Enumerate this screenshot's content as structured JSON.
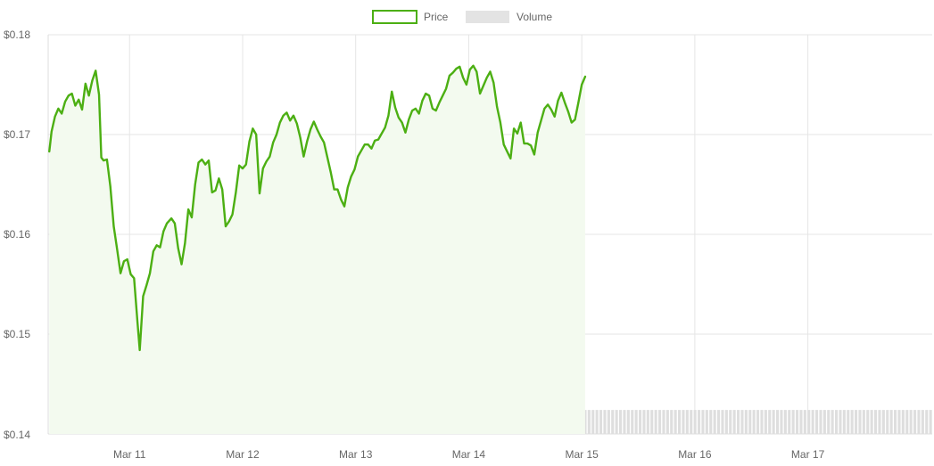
{
  "legend": {
    "position": "top-center",
    "items": [
      {
        "label": "Price",
        "color": "#4caf13",
        "style": "outline"
      },
      {
        "label": "Volume",
        "color": "#e3e3e3",
        "style": "filled"
      }
    ]
  },
  "colors": {
    "price_line": "#4caf13",
    "price_fill": "#f3faef",
    "volume_bar": "#dedede",
    "grid": "#e5e5e5",
    "axis_text": "#666666"
  },
  "chart_data": {
    "type": "line",
    "title": "",
    "xlabel": "",
    "ylabel": "",
    "grid": true,
    "xlim": [
      10.28,
      18.1
    ],
    "ylim": [
      0.14,
      0.18
    ],
    "y_ticks": [
      {
        "value": 0.18,
        "label": "$0.18"
      },
      {
        "value": 0.17,
        "label": "$0.17"
      },
      {
        "value": 0.16,
        "label": "$0.16"
      },
      {
        "value": 0.15,
        "label": "$0.15"
      },
      {
        "value": 0.14,
        "label": "$0.14"
      }
    ],
    "x_ticks": [
      {
        "value": 11,
        "label": "Mar 11"
      },
      {
        "value": 12,
        "label": "Mar 12"
      },
      {
        "value": 13,
        "label": "Mar 13"
      },
      {
        "value": 14,
        "label": "Mar 14"
      },
      {
        "value": 15,
        "label": "Mar 15"
      },
      {
        "value": 16,
        "label": "Mar 16"
      },
      {
        "value": 17,
        "label": "Mar 17"
      }
    ],
    "series": [
      {
        "name": "Price",
        "kind": "line",
        "points": [
          [
            10.29,
            0.1683
          ],
          [
            10.31,
            0.1703
          ],
          [
            10.34,
            0.1718
          ],
          [
            10.37,
            0.1726
          ],
          [
            10.4,
            0.1721
          ],
          [
            10.43,
            0.1733
          ],
          [
            10.46,
            0.1739
          ],
          [
            10.49,
            0.1741
          ],
          [
            10.52,
            0.1729
          ],
          [
            10.55,
            0.1735
          ],
          [
            10.58,
            0.1725
          ],
          [
            10.61,
            0.1751
          ],
          [
            10.64,
            0.1739
          ],
          [
            10.67,
            0.1754
          ],
          [
            10.7,
            0.1764
          ],
          [
            10.73,
            0.174
          ],
          [
            10.75,
            0.1677
          ],
          [
            10.77,
            0.1674
          ],
          [
            10.8,
            0.1675
          ],
          [
            10.83,
            0.1648
          ],
          [
            10.86,
            0.1608
          ],
          [
            10.89,
            0.1585
          ],
          [
            10.92,
            0.1561
          ],
          [
            10.95,
            0.1573
          ],
          [
            10.98,
            0.1575
          ],
          [
            11.01,
            0.156
          ],
          [
            11.04,
            0.1556
          ],
          [
            11.07,
            0.1512
          ],
          [
            11.09,
            0.1484
          ],
          [
            11.12,
            0.1538
          ],
          [
            11.15,
            0.1549
          ],
          [
            11.18,
            0.1561
          ],
          [
            11.21,
            0.1583
          ],
          [
            11.24,
            0.1589
          ],
          [
            11.27,
            0.1587
          ],
          [
            11.3,
            0.1603
          ],
          [
            11.33,
            0.1611
          ],
          [
            11.37,
            0.1616
          ],
          [
            11.4,
            0.1611
          ],
          [
            11.43,
            0.1586
          ],
          [
            11.46,
            0.157
          ],
          [
            11.49,
            0.1591
          ],
          [
            11.52,
            0.1625
          ],
          [
            11.55,
            0.1617
          ],
          [
            11.58,
            0.165
          ],
          [
            11.61,
            0.1672
          ],
          [
            11.64,
            0.1675
          ],
          [
            11.67,
            0.167
          ],
          [
            11.7,
            0.1674
          ],
          [
            11.73,
            0.1642
          ],
          [
            11.76,
            0.1644
          ],
          [
            11.79,
            0.1656
          ],
          [
            11.82,
            0.1645
          ],
          [
            11.85,
            0.1608
          ],
          [
            11.88,
            0.1613
          ],
          [
            11.91,
            0.162
          ],
          [
            11.94,
            0.1642
          ],
          [
            11.97,
            0.1669
          ],
          [
            12.0,
            0.1666
          ],
          [
            12.03,
            0.167
          ],
          [
            12.06,
            0.1693
          ],
          [
            12.09,
            0.1706
          ],
          [
            12.12,
            0.17
          ],
          [
            12.15,
            0.1641
          ],
          [
            12.18,
            0.1666
          ],
          [
            12.21,
            0.1673
          ],
          [
            12.24,
            0.1678
          ],
          [
            12.27,
            0.1692
          ],
          [
            12.3,
            0.17
          ],
          [
            12.33,
            0.1712
          ],
          [
            12.36,
            0.1719
          ],
          [
            12.39,
            0.1722
          ],
          [
            12.42,
            0.1714
          ],
          [
            12.45,
            0.1719
          ],
          [
            12.48,
            0.1711
          ],
          [
            12.51,
            0.1697
          ],
          [
            12.54,
            0.1678
          ],
          [
            12.57,
            0.1693
          ],
          [
            12.6,
            0.1705
          ],
          [
            12.63,
            0.1713
          ],
          [
            12.66,
            0.1705
          ],
          [
            12.69,
            0.1698
          ],
          [
            12.72,
            0.1692
          ],
          [
            12.75,
            0.1677
          ],
          [
            12.78,
            0.1662
          ],
          [
            12.81,
            0.1645
          ],
          [
            12.84,
            0.1645
          ],
          [
            12.87,
            0.1635
          ],
          [
            12.9,
            0.1628
          ],
          [
            12.93,
            0.1647
          ],
          [
            12.96,
            0.1658
          ],
          [
            12.99,
            0.1665
          ],
          [
            13.02,
            0.1678
          ],
          [
            13.05,
            0.1684
          ],
          [
            13.08,
            0.169
          ],
          [
            13.11,
            0.169
          ],
          [
            13.14,
            0.1686
          ],
          [
            13.17,
            0.1694
          ],
          [
            13.2,
            0.1695
          ],
          [
            13.23,
            0.1701
          ],
          [
            13.26,
            0.1707
          ],
          [
            13.29,
            0.1719
          ],
          [
            13.32,
            0.1743
          ],
          [
            13.35,
            0.1727
          ],
          [
            13.38,
            0.1717
          ],
          [
            13.41,
            0.1712
          ],
          [
            13.44,
            0.1702
          ],
          [
            13.47,
            0.1715
          ],
          [
            13.5,
            0.1724
          ],
          [
            13.53,
            0.1726
          ],
          [
            13.56,
            0.1721
          ],
          [
            13.59,
            0.1734
          ],
          [
            13.62,
            0.1741
          ],
          [
            13.65,
            0.1739
          ],
          [
            13.68,
            0.1726
          ],
          [
            13.71,
            0.1724
          ],
          [
            13.74,
            0.1732
          ],
          [
            13.77,
            0.1739
          ],
          [
            13.8,
            0.1746
          ],
          [
            13.83,
            0.1759
          ],
          [
            13.86,
            0.1762
          ],
          [
            13.89,
            0.1766
          ],
          [
            13.92,
            0.1768
          ],
          [
            13.95,
            0.1757
          ],
          [
            13.98,
            0.175
          ],
          [
            14.01,
            0.1765
          ],
          [
            14.04,
            0.1769
          ],
          [
            14.07,
            0.1763
          ],
          [
            14.1,
            0.1741
          ],
          [
            14.13,
            0.1749
          ],
          [
            14.16,
            0.1757
          ],
          [
            14.19,
            0.1763
          ],
          [
            14.22,
            0.1752
          ],
          [
            14.25,
            0.1728
          ],
          [
            14.28,
            0.1712
          ],
          [
            14.31,
            0.169
          ],
          [
            14.34,
            0.1683
          ],
          [
            14.37,
            0.1676
          ],
          [
            14.4,
            0.1706
          ],
          [
            14.43,
            0.1701
          ],
          [
            14.46,
            0.1712
          ],
          [
            14.49,
            0.1691
          ],
          [
            14.52,
            0.1691
          ],
          [
            14.55,
            0.1689
          ],
          [
            14.58,
            0.168
          ],
          [
            14.61,
            0.1702
          ],
          [
            14.64,
            0.1714
          ],
          [
            14.67,
            0.1726
          ],
          [
            14.7,
            0.173
          ],
          [
            14.73,
            0.1725
          ],
          [
            14.76,
            0.1718
          ],
          [
            14.79,
            0.1734
          ],
          [
            14.82,
            0.1742
          ],
          [
            14.85,
            0.1732
          ],
          [
            14.88,
            0.1723
          ],
          [
            14.91,
            0.1712
          ],
          [
            14.94,
            0.1715
          ],
          [
            14.97,
            0.1732
          ],
          [
            15.0,
            0.175
          ],
          [
            15.03,
            0.1758
          ]
        ]
      },
      {
        "name": "Volume",
        "kind": "bar",
        "baseline": 0.14,
        "points": [
          [
            10.3,
            0.1439
          ],
          [
            10.4,
            0.144
          ],
          [
            10.5,
            0.1441
          ],
          [
            10.6,
            0.1445
          ],
          [
            10.7,
            0.1447
          ],
          [
            10.8,
            0.1445
          ],
          [
            10.9,
            0.1442
          ],
          [
            11.0,
            0.1443
          ],
          [
            11.1,
            0.1446
          ],
          [
            11.2,
            0.1452
          ],
          [
            11.3,
            0.1455
          ],
          [
            11.4,
            0.1455
          ],
          [
            11.5,
            0.1456
          ],
          [
            11.6,
            0.1457
          ],
          [
            11.7,
            0.1455
          ],
          [
            11.8,
            0.145
          ],
          [
            11.9,
            0.1445
          ],
          [
            12.0,
            0.1443
          ],
          [
            12.1,
            0.1444
          ],
          [
            12.2,
            0.1442
          ],
          [
            12.3,
            0.1438
          ],
          [
            12.4,
            0.1436
          ],
          [
            12.5,
            0.1435
          ],
          [
            12.6,
            0.1434
          ],
          [
            12.7,
            0.1434
          ],
          [
            12.8,
            0.1433
          ],
          [
            12.9,
            0.1432
          ],
          [
            13.0,
            0.1431
          ],
          [
            13.1,
            0.143
          ],
          [
            13.2,
            0.143
          ],
          [
            13.3,
            0.1429
          ],
          [
            13.4,
            0.1427
          ],
          [
            13.5,
            0.1425
          ],
          [
            13.6,
            0.1424
          ],
          [
            13.7,
            0.1423
          ],
          [
            13.8,
            0.1423
          ],
          [
            13.9,
            0.1422
          ],
          [
            14.0,
            0.1421
          ],
          [
            14.1,
            0.142
          ],
          [
            14.2,
            0.1419
          ],
          [
            14.3,
            0.1418
          ],
          [
            14.4,
            0.1418
          ],
          [
            14.5,
            0.1417
          ],
          [
            14.6,
            0.1418
          ],
          [
            14.7,
            0.1419
          ],
          [
            14.8,
            0.1421
          ],
          [
            14.9,
            0.1423
          ],
          [
            15.0,
            0.1424
          ],
          [
            15.05,
            0.1424
          ]
        ]
      }
    ]
  }
}
